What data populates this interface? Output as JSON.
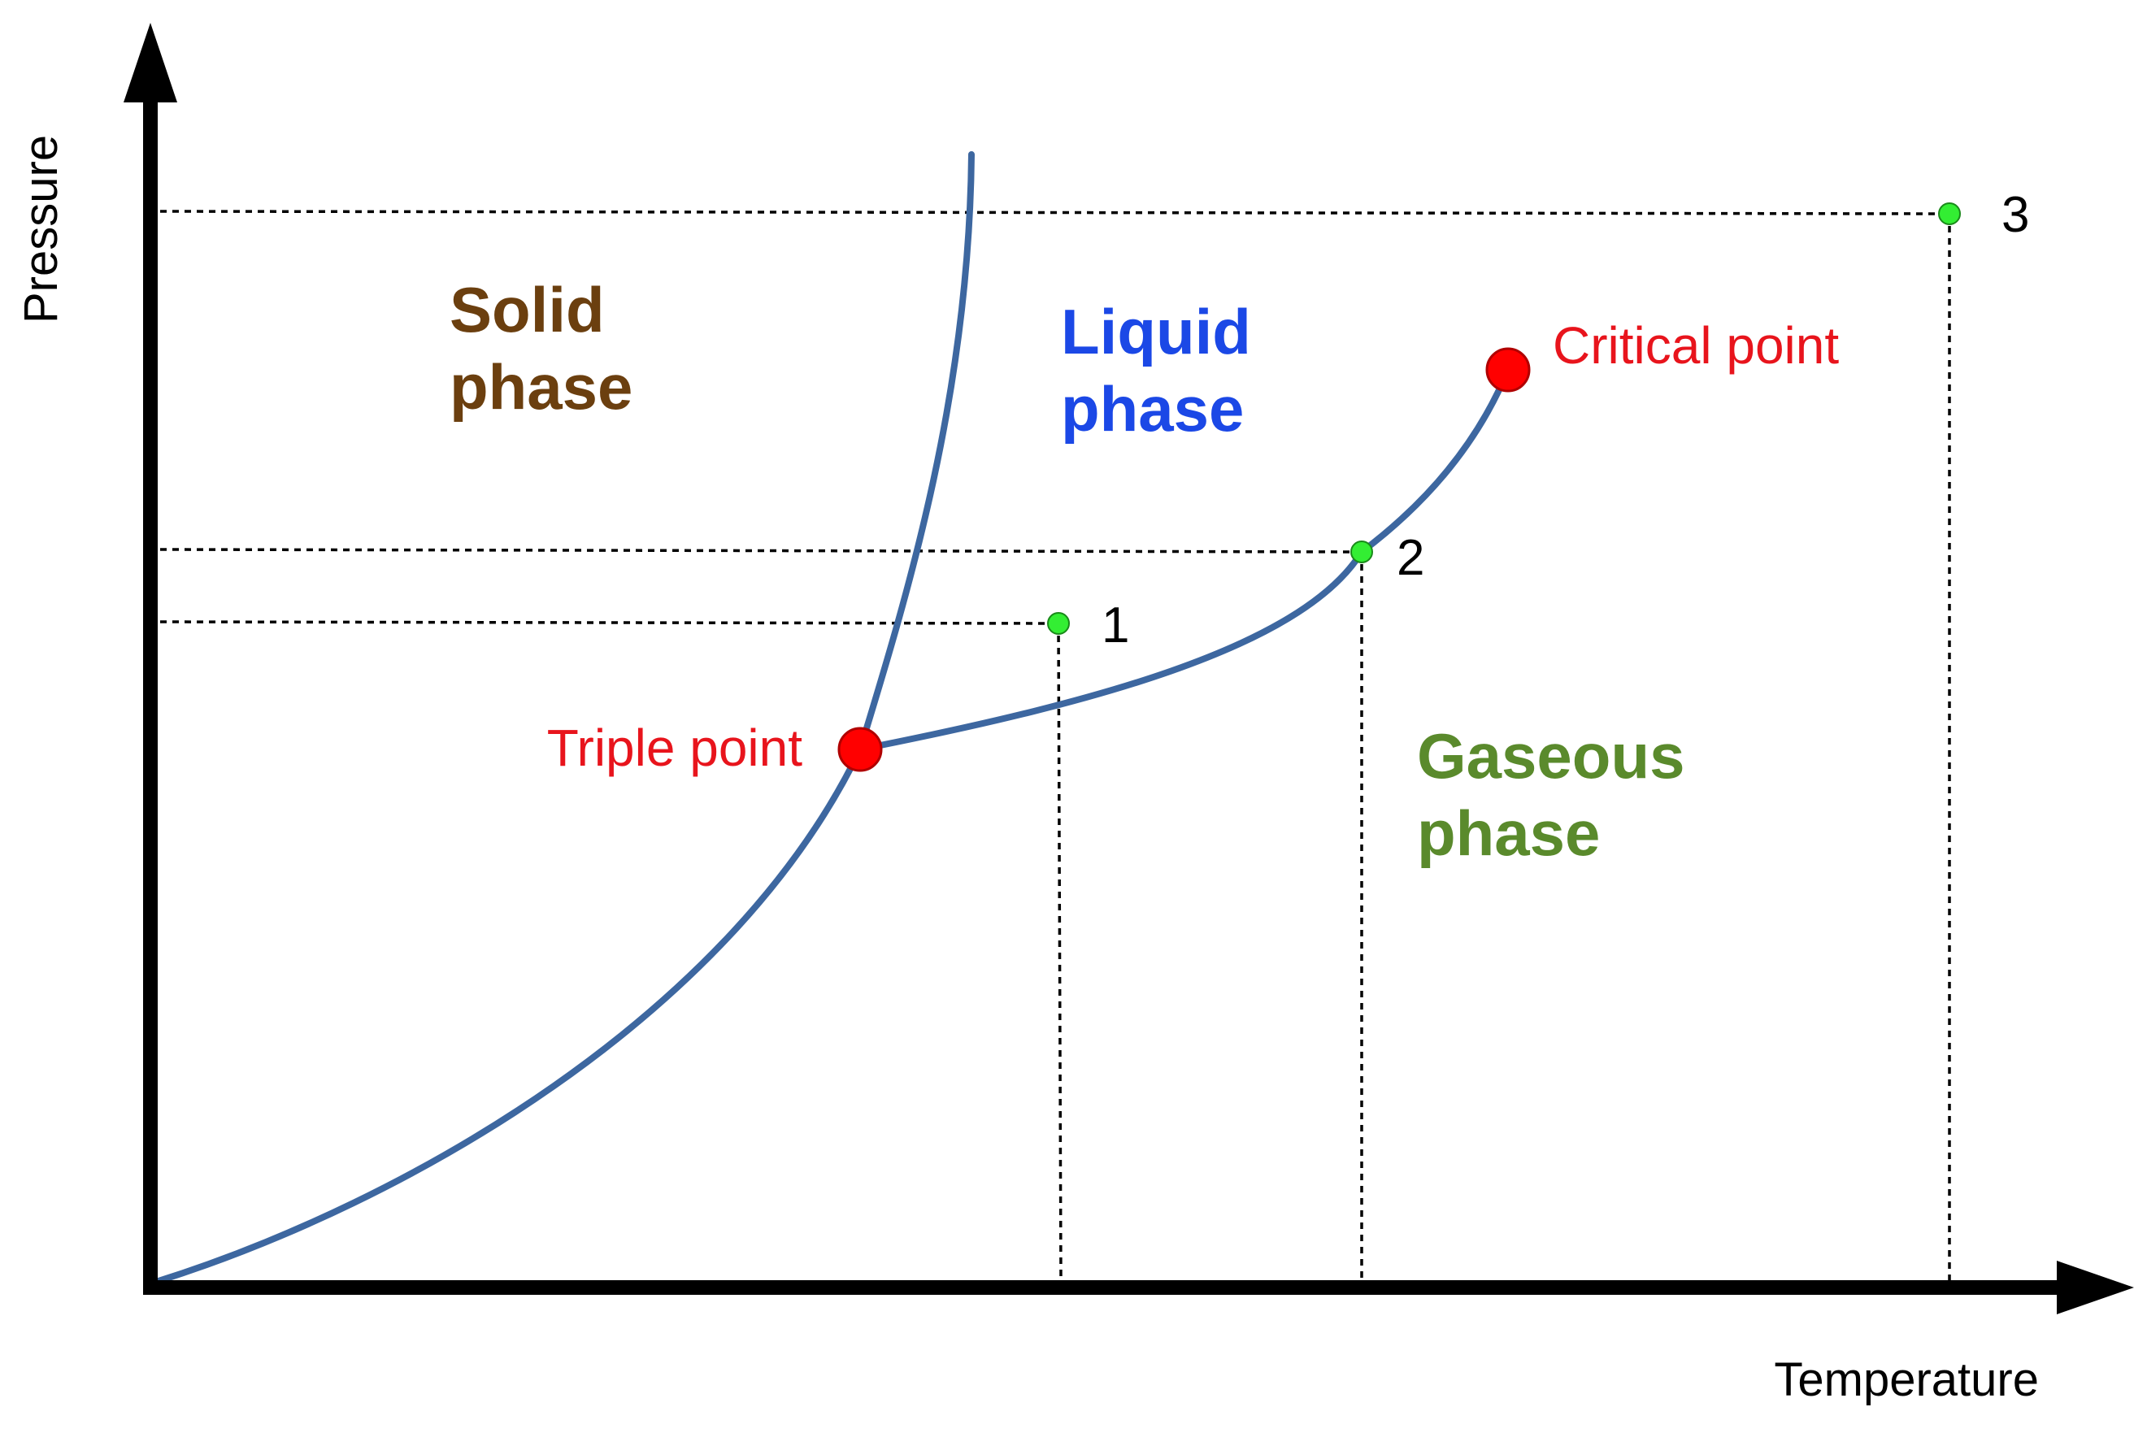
{
  "axes": {
    "y_label": "Pressure",
    "x_label": "Temperature"
  },
  "phases": {
    "solid": [
      "Solid",
      "phase"
    ],
    "liquid": [
      "Liquid",
      "phase"
    ],
    "gas": [
      "Gaseous",
      "phase"
    ]
  },
  "special_points": {
    "triple": "Triple point",
    "critical": "Critical point"
  },
  "state_points": [
    "1",
    "2",
    "3"
  ],
  "colors": {
    "axis": "#000000",
    "curve": "#3d67a0",
    "solid_text": "#6b3f0f",
    "liquid_text": "#1b48e6",
    "gas_text": "#5a8a2c",
    "special_text": "#e8141c",
    "special_marker": "#ff0000",
    "state_marker": "#33ee33"
  },
  "icons": {
    "y_arrow": "arrow-up-icon",
    "x_arrow": "arrow-right-icon"
  }
}
